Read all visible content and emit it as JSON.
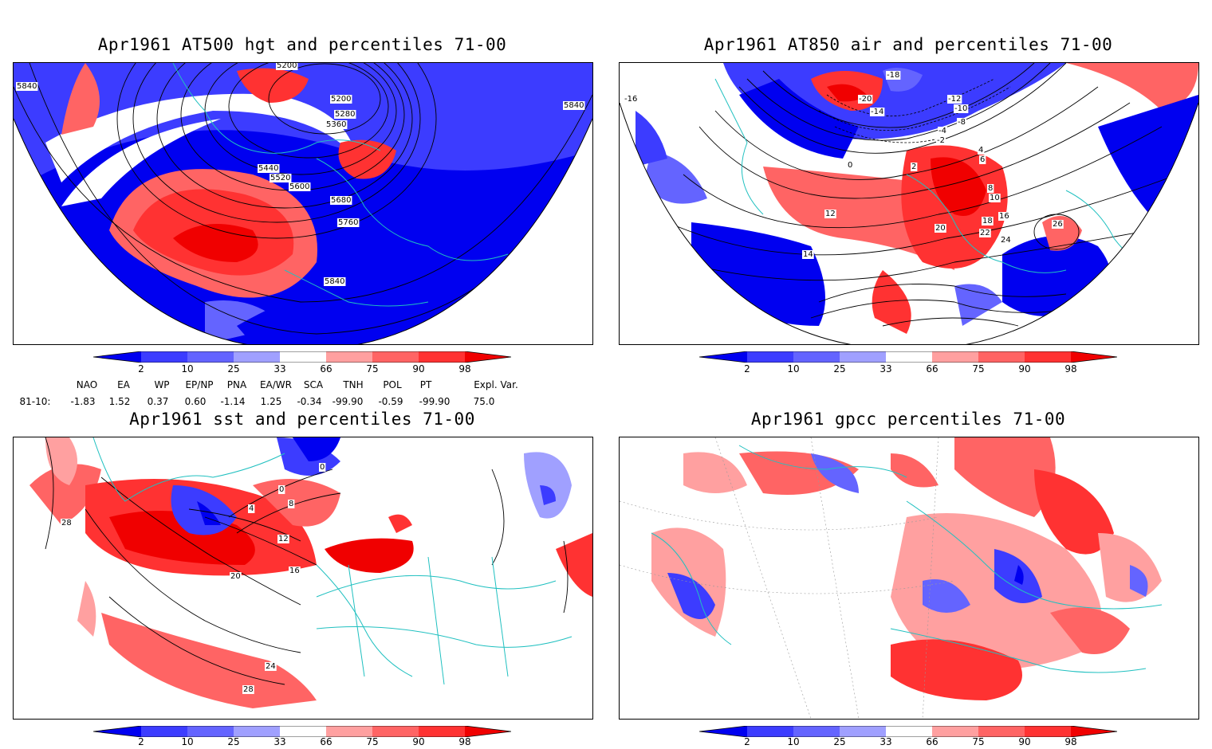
{
  "panels": [
    {
      "id": "p1",
      "title": "Apr1961 AT500 hgt and percentiles 71-00",
      "contour_labels": [
        "5200",
        "5200",
        "5280",
        "5360",
        "5440",
        "5520",
        "5600",
        "5680",
        "5760",
        "5840",
        "5840",
        "5840"
      ]
    },
    {
      "id": "p2",
      "title": "Apr1961 AT850 air and percentiles 71-00",
      "contour_labels": [
        "-20",
        "-18",
        "-16",
        "-14",
        "-12",
        "-10",
        "-8",
        "-4",
        "-2",
        "0",
        "2",
        "4",
        "6",
        "8",
        "10",
        "12",
        "14",
        "16",
        "18",
        "20",
        "22",
        "24",
        "26"
      ]
    },
    {
      "id": "p3",
      "title": "Apr1961 sst and percentiles 71-00",
      "contour_labels": [
        "0",
        "0",
        "4",
        "8",
        "12",
        "16",
        "20",
        "24",
        "28",
        "28"
      ]
    },
    {
      "id": "p4",
      "title": "Apr1961 gpcc percentiles 71-00",
      "contour_labels": []
    }
  ],
  "colorbar": {
    "labels": [
      "2",
      "10",
      "25",
      "33",
      "66",
      "75",
      "90",
      "98"
    ],
    "colors": [
      "#0000f0",
      "#3c3cff",
      "#6464ff",
      "#a0a0ff",
      "#ffffff",
      "#ffa0a0",
      "#ff6464",
      "#ff3232",
      "#f00000"
    ]
  },
  "indices": {
    "row_label": "81-10:",
    "headers": [
      "NAO",
      "EA",
      "WP",
      "EP/NP",
      "PNA",
      "EA/WR",
      "SCA",
      "TNH",
      "POL",
      "PT",
      "Expl. Var."
    ],
    "values": [
      "-1.83",
      "1.52",
      "0.37",
      "0.60",
      "-1.14",
      "1.25",
      "-0.34",
      "-99.90",
      "-0.59",
      "-99.90",
      "75.0"
    ]
  }
}
